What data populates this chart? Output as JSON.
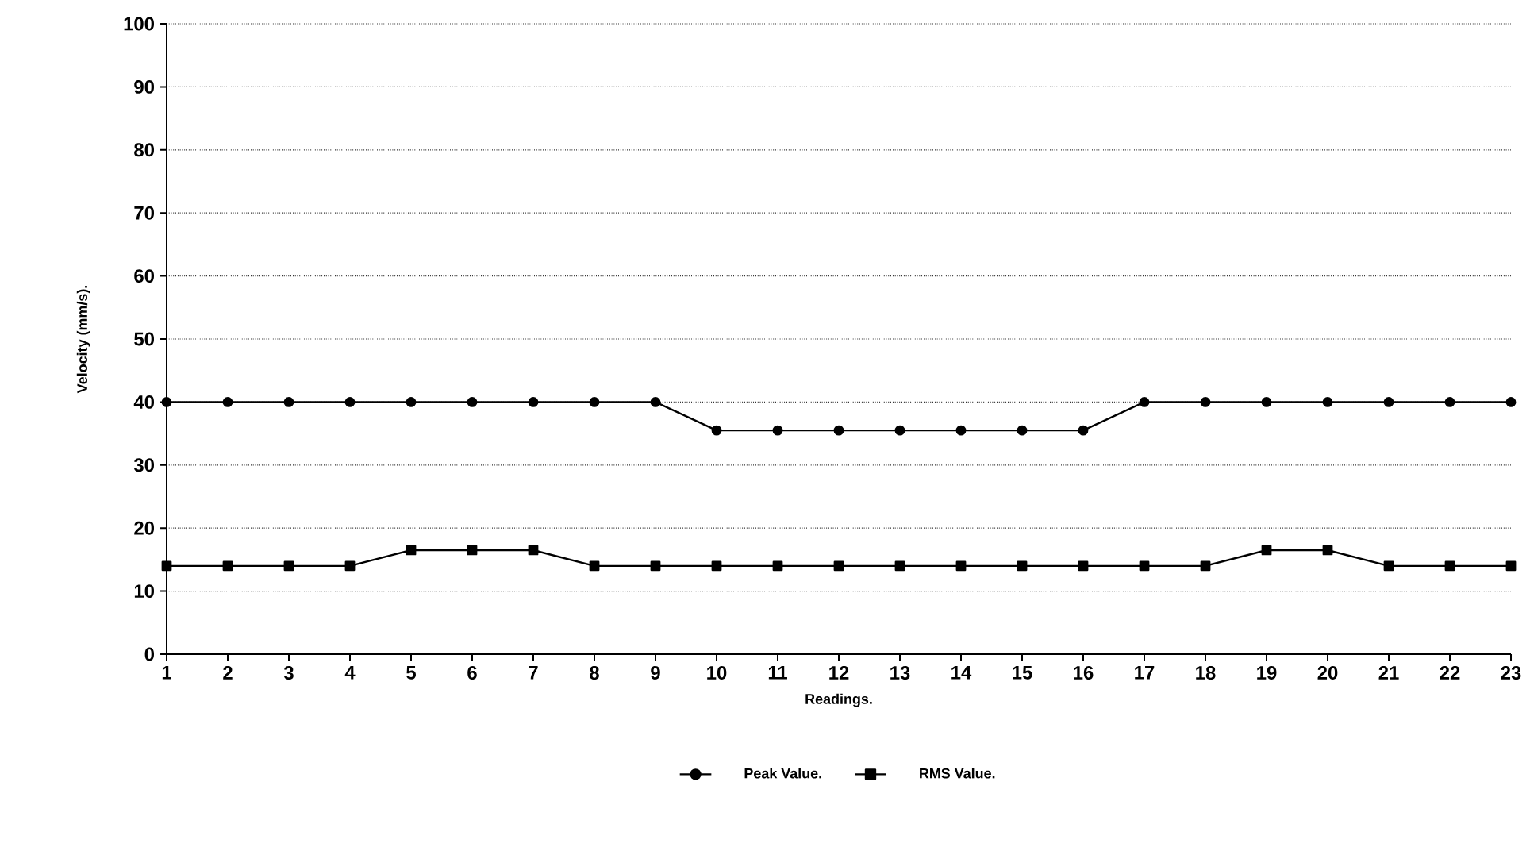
{
  "chart_data": {
    "type": "line",
    "xlabel": "Readings.",
    "ylabel": "Velocity (mm/s).",
    "x": [
      1,
      2,
      3,
      4,
      5,
      6,
      7,
      8,
      9,
      10,
      11,
      12,
      13,
      14,
      15,
      16,
      17,
      18,
      19,
      20,
      21,
      22,
      23
    ],
    "series": [
      {
        "name": "Peak Value.",
        "color": "#000000",
        "marker": "circle",
        "values": [
          40,
          40,
          40,
          40,
          40,
          40,
          40,
          40,
          40,
          35.5,
          35.5,
          35.5,
          35.5,
          35.5,
          35.5,
          35.5,
          40,
          40,
          40,
          40,
          40,
          40,
          40
        ]
      },
      {
        "name": "RMS Value.",
        "color": "#000000",
        "marker": "square",
        "values": [
          14,
          14,
          14,
          14,
          16.5,
          16.5,
          16.5,
          14,
          14,
          14,
          14,
          14,
          14,
          14,
          14,
          14,
          14,
          14,
          16.5,
          16.5,
          14,
          14,
          14
        ]
      }
    ],
    "xlim": [
      1,
      23
    ],
    "xticks": [
      1,
      2,
      3,
      4,
      5,
      6,
      7,
      8,
      9,
      10,
      11,
      12,
      13,
      14,
      15,
      16,
      17,
      18,
      19,
      20,
      21,
      22,
      23
    ],
    "ylim": [
      0,
      100
    ],
    "yticks": [
      0,
      10,
      20,
      30,
      40,
      50,
      60,
      70,
      80,
      90,
      100
    ],
    "grid": "y",
    "legend": "bottom",
    "line_style": "solid"
  }
}
